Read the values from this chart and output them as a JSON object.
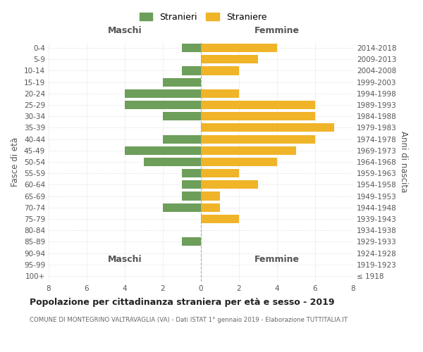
{
  "age_groups": [
    "100+",
    "95-99",
    "90-94",
    "85-89",
    "80-84",
    "75-79",
    "70-74",
    "65-69",
    "60-64",
    "55-59",
    "50-54",
    "45-49",
    "40-44",
    "35-39",
    "30-34",
    "25-29",
    "20-24",
    "15-19",
    "10-14",
    "5-9",
    "0-4"
  ],
  "birth_years": [
    "≤ 1918",
    "1919-1923",
    "1924-1928",
    "1929-1933",
    "1934-1938",
    "1939-1943",
    "1944-1948",
    "1949-1953",
    "1954-1958",
    "1959-1963",
    "1964-1968",
    "1969-1973",
    "1974-1978",
    "1979-1983",
    "1984-1988",
    "1989-1993",
    "1994-1998",
    "1999-2003",
    "2004-2008",
    "2009-2013",
    "2014-2018"
  ],
  "maschi": [
    0,
    0,
    0,
    1,
    0,
    0,
    2,
    1,
    1,
    1,
    3,
    4,
    2,
    0,
    2,
    4,
    4,
    2,
    1,
    0,
    1
  ],
  "femmine": [
    0,
    0,
    0,
    0,
    0,
    2,
    1,
    1,
    3,
    2,
    4,
    5,
    6,
    7,
    6,
    6,
    2,
    0,
    2,
    3,
    4
  ],
  "color_maschi": "#6d9e5a",
  "color_femmine": "#f0b429",
  "title": "Popolazione per cittadinanza straniera per età e sesso - 2019",
  "subtitle": "COMUNE DI MONTEGRINO VALTRAVAGLIA (VA) - Dati ISTAT 1° gennaio 2019 - Elaborazione TUTTITALIA.IT",
  "ylabel_left": "Fasce di età",
  "ylabel_right": "Anni di nascita",
  "xlabel_left": "Maschi",
  "xlabel_right": "Femmine",
  "legend_maschi": "Stranieri",
  "legend_femmine": "Straniere",
  "xlim": 8,
  "background_color": "#ffffff",
  "grid_color": "#cccccc"
}
